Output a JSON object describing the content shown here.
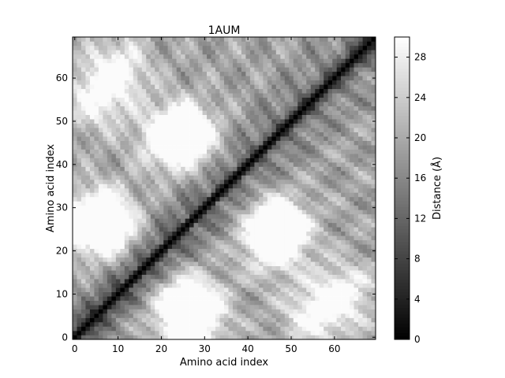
{
  "chart_data": {
    "type": "heatmap",
    "title": "1AUM",
    "xlabel": "Amino acid index",
    "ylabel": "Amino acid index",
    "n": 70,
    "xlim": [
      0,
      69
    ],
    "ylim": [
      0,
      69
    ],
    "x_ticks": [
      0,
      10,
      20,
      30,
      40,
      50,
      60
    ],
    "y_ticks": [
      0,
      10,
      20,
      30,
      40,
      50,
      60
    ],
    "colorbar": {
      "label": "Distance (Å)",
      "min": 0,
      "max": 30,
      "ticks": [
        0,
        4,
        8,
        12,
        16,
        20,
        24,
        28
      ],
      "colormap": "gray"
    },
    "value_model": "symmetric pairwise C-alpha distance matrix; 0 on diagonal, ~28-30 at far off-diagonal maxima",
    "hotspots": [
      {
        "i": 7,
        "j": 27,
        "value": 28
      },
      {
        "i": 27,
        "j": 7,
        "value": 28
      },
      {
        "i": 26,
        "j": 47,
        "value": 28
      },
      {
        "i": 47,
        "j": 26,
        "value": 28
      },
      {
        "i": 26,
        "j": 5,
        "value": 29
      },
      {
        "i": 5,
        "j": 26,
        "value": 29
      },
      {
        "i": 46,
        "j": 22,
        "value": 27
      },
      {
        "i": 22,
        "j": 46,
        "value": 27
      },
      {
        "i": 62,
        "j": 10,
        "value": 25
      },
      {
        "i": 10,
        "j": 62,
        "value": 25
      },
      {
        "i": 55,
        "j": 5,
        "value": 24
      },
      {
        "i": 5,
        "j": 55,
        "value": 24
      }
    ],
    "grid": false,
    "colors": {
      "frame": "#000000",
      "background": "#ffffff"
    }
  }
}
